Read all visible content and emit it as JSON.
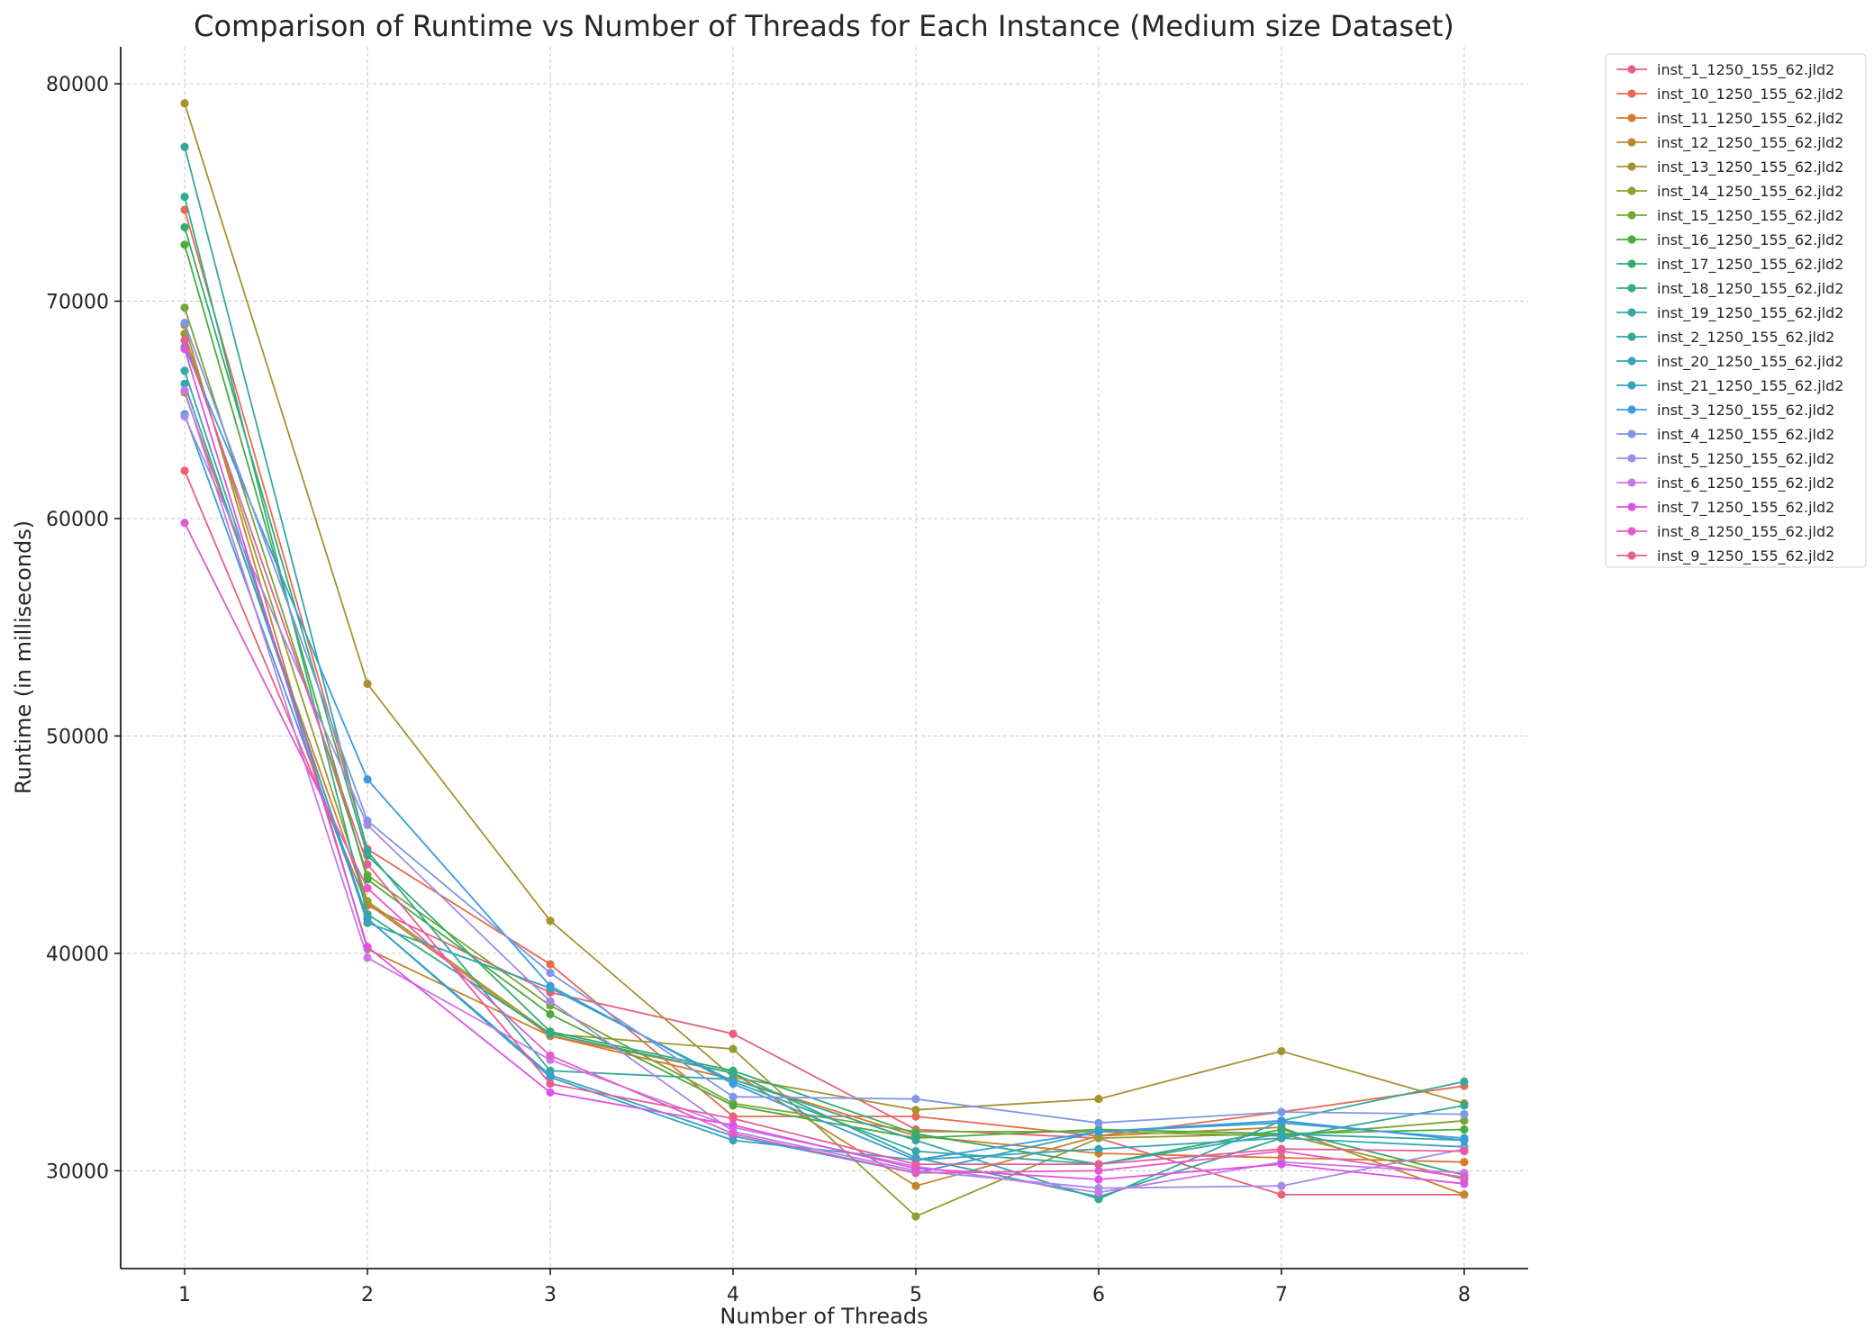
{
  "chart_data": {
    "type": "line",
    "title": "Comparison of Runtime vs Number of Threads for Each Instance (Medium size Dataset)",
    "xlabel": "Number of Threads",
    "ylabel": "Runtime (in milliseconds)",
    "x": [
      1,
      2,
      3,
      4,
      5,
      6,
      7,
      8
    ],
    "xlim": [
      0.65,
      8.35
    ],
    "ylim": [
      25500,
      81700
    ],
    "yticks": [
      30000,
      40000,
      50000,
      60000,
      70000,
      80000
    ],
    "grid": true,
    "legend_position": "outside-top-right",
    "series": [
      {
        "name": "inst_1_1250_155_62.jld2",
        "color": "#e8607a",
        "values": [
          62200,
          42200,
          38200,
          36300,
          31900,
          31500,
          28900,
          28900
        ]
      },
      {
        "name": "inst_10_1250_155_62.jld2",
        "color": "#e86a4f",
        "values": [
          74200,
          44800,
          39500,
          32500,
          32500,
          31600,
          32700,
          33900
        ]
      },
      {
        "name": "inst_11_1250_155_62.jld2",
        "color": "#d9792f",
        "values": [
          65800,
          42300,
          36200,
          34200,
          31600,
          30800,
          30600,
          30400
        ]
      },
      {
        "name": "inst_12_1250_155_62.jld2",
        "color": "#c48530",
        "values": [
          68900,
          40200,
          36200,
          34500,
          29300,
          31600,
          32000,
          28900
        ]
      },
      {
        "name": "inst_13_1250_155_62.jld2",
        "color": "#a89230",
        "values": [
          79100,
          52400,
          41500,
          34300,
          32800,
          33300,
          35500,
          33100
        ]
      },
      {
        "name": "inst_14_1250_155_62.jld2",
        "color": "#979c31",
        "values": [
          68500,
          42400,
          36300,
          35600,
          27900,
          31500,
          31700,
          29600
        ]
      },
      {
        "name": "inst_15_1250_155_62.jld2",
        "color": "#7aa433",
        "values": [
          69700,
          43600,
          37600,
          33100,
          31800,
          31800,
          31600,
          32300
        ]
      },
      {
        "name": "inst_16_1250_155_62.jld2",
        "color": "#4aac3c",
        "values": [
          72600,
          43400,
          37200,
          33000,
          31500,
          31900,
          31700,
          31900
        ]
      },
      {
        "name": "inst_17_1250_155_62.jld2",
        "color": "#33ac6e",
        "values": [
          73400,
          44500,
          36400,
          34600,
          31700,
          30300,
          31900,
          29800
        ]
      },
      {
        "name": "inst_18_1250_155_62.jld2",
        "color": "#33aa8f",
        "values": [
          74800,
          41800,
          36300,
          34500,
          30600,
          28800,
          31500,
          33000
        ]
      },
      {
        "name": "inst_19_1250_155_62.jld2",
        "color": "#34a99b",
        "values": [
          77100,
          44700,
          34600,
          34200,
          31400,
          28700,
          32300,
          34100
        ]
      },
      {
        "name": "inst_2_1250_155_62.jld2",
        "color": "#35a7a7",
        "values": [
          66800,
          41400,
          38400,
          34100,
          30900,
          30300,
          31700,
          31400
        ]
      },
      {
        "name": "inst_20_1250_155_62.jld2",
        "color": "#36a4b8",
        "values": [
          66200,
          41600,
          34300,
          31400,
          30500,
          31000,
          31500,
          31100
        ]
      },
      {
        "name": "inst_21_1250_155_62.jld2",
        "color": "#38a0c8",
        "values": [
          64800,
          41600,
          34400,
          31600,
          29900,
          31800,
          32200,
          31500
        ]
      },
      {
        "name": "inst_3_1250_155_62.jld2",
        "color": "#3b9be0",
        "values": [
          67900,
          48000,
          38500,
          34000,
          30500,
          31800,
          32300,
          31400
        ]
      },
      {
        "name": "inst_4_1250_155_62.jld2",
        "color": "#7f95e8",
        "values": [
          69000,
          46100,
          39100,
          33400,
          33300,
          32200,
          32700,
          32600
        ]
      },
      {
        "name": "inst_5_1250_155_62.jld2",
        "color": "#a58ae8",
        "values": [
          64700,
          45900,
          37800,
          31800,
          30000,
          29200,
          29300,
          31000
        ]
      },
      {
        "name": "inst_6_1250_155_62.jld2",
        "color": "#c679ea",
        "values": [
          65900,
          39800,
          35100,
          32000,
          30200,
          29000,
          30400,
          29900
        ]
      },
      {
        "name": "inst_7_1250_155_62.jld2",
        "color": "#e050e6",
        "values": [
          67800,
          40300,
          33600,
          32100,
          30100,
          29600,
          30300,
          29400
        ]
      },
      {
        "name": "inst_8_1250_155_62.jld2",
        "color": "#e45bc8",
        "values": [
          59800,
          43000,
          35300,
          31700,
          29900,
          30000,
          30900,
          29700
        ]
      },
      {
        "name": "inst_9_1250_155_62.jld2",
        "color": "#e85c9a",
        "values": [
          68200,
          44100,
          34000,
          32400,
          30300,
          30300,
          31000,
          30900
        ]
      }
    ]
  }
}
